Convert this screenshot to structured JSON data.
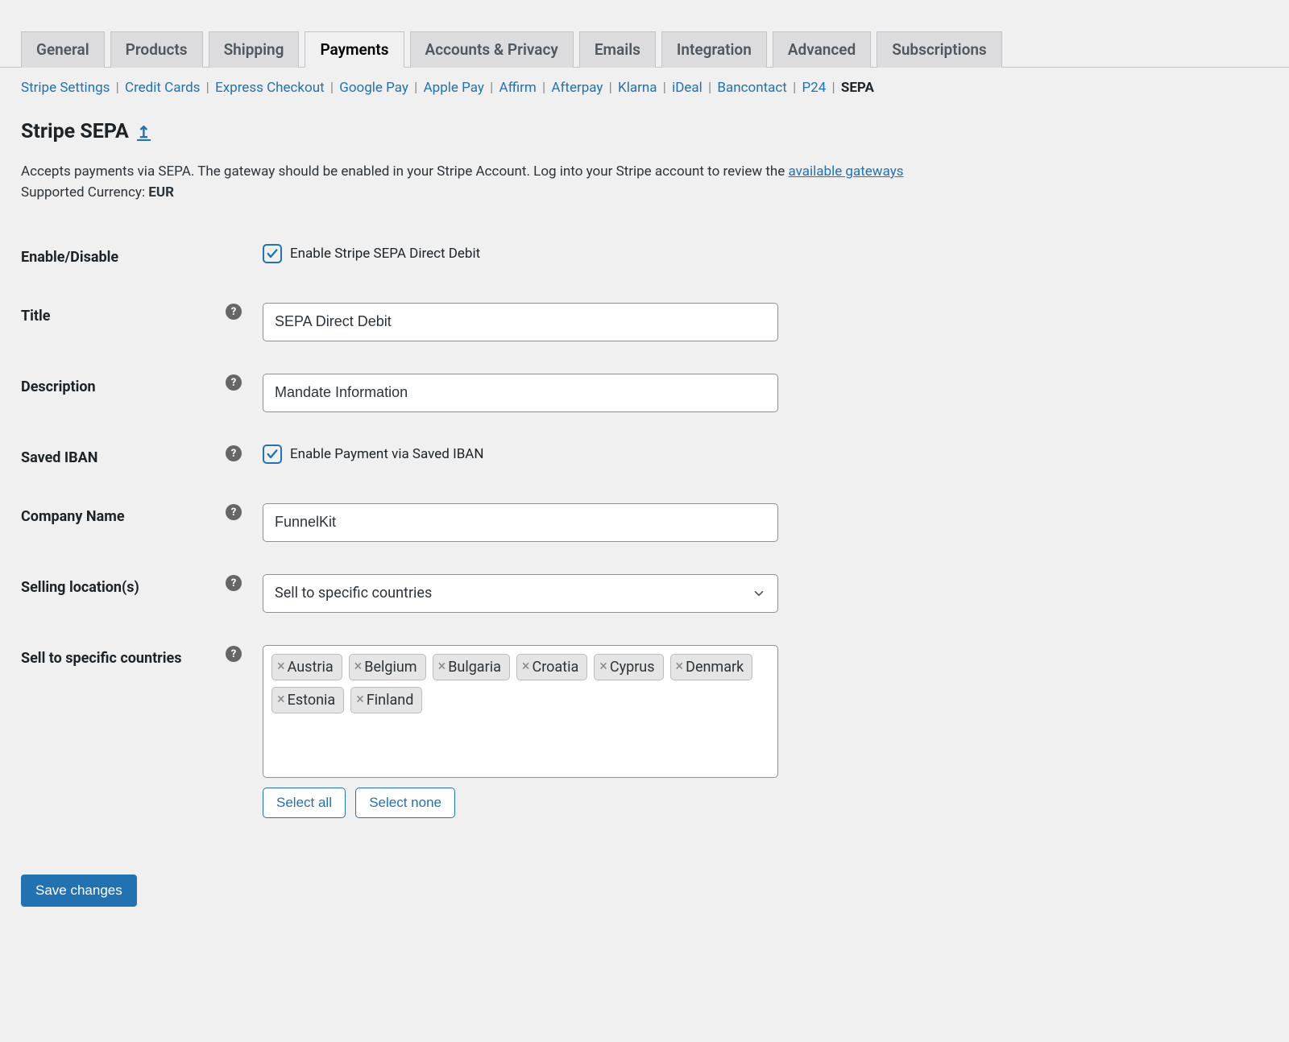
{
  "tabs": {
    "items": [
      "General",
      "Products",
      "Shipping",
      "Payments",
      "Accounts & Privacy",
      "Emails",
      "Integration",
      "Advanced",
      "Subscriptions"
    ],
    "active": "Payments"
  },
  "subnav": {
    "items": [
      "Stripe Settings",
      "Credit Cards",
      "Express Checkout",
      "Google Pay",
      "Apple Pay",
      "Affirm",
      "Afterpay",
      "Klarna",
      "iDeal",
      "Bancontact",
      "P24",
      "SEPA"
    ],
    "current": "SEPA"
  },
  "heading": {
    "title": "Stripe SEPA",
    "back_glyph": "↥"
  },
  "intro": {
    "text_prefix": "Accepts payments via SEPA. The gateway should be enabled in your Stripe Account. Log into your Stripe account to review the ",
    "link_text": "available gateways",
    "supported_label": "Supported Currency: ",
    "supported_value": "EUR"
  },
  "form": {
    "enable": {
      "label": "Enable/Disable",
      "checkbox_label": "Enable Stripe SEPA Direct Debit",
      "checked": true
    },
    "title": {
      "label": "Title",
      "value": "SEPA Direct Debit"
    },
    "description": {
      "label": "Description",
      "value": "Mandate Information"
    },
    "saved_iban": {
      "label": "Saved IBAN",
      "checkbox_label": "Enable Payment via Saved IBAN",
      "checked": true
    },
    "company": {
      "label": "Company Name",
      "value": "FunnelKit"
    },
    "selling_locations": {
      "label": "Selling location(s)",
      "value": "Sell to specific countries"
    },
    "specific_countries": {
      "label": "Sell to specific countries",
      "items": [
        "Austria",
        "Belgium",
        "Bulgaria",
        "Croatia",
        "Cyprus",
        "Denmark",
        "Estonia",
        "Finland"
      ],
      "select_all": "Select all",
      "select_none": "Select none"
    }
  },
  "save_label": "Save changes",
  "colors": {
    "link": "#2271b1",
    "bg": "#f0f0f1",
    "border": "#8c8f94",
    "tag_bg": "#e5e5e5"
  }
}
